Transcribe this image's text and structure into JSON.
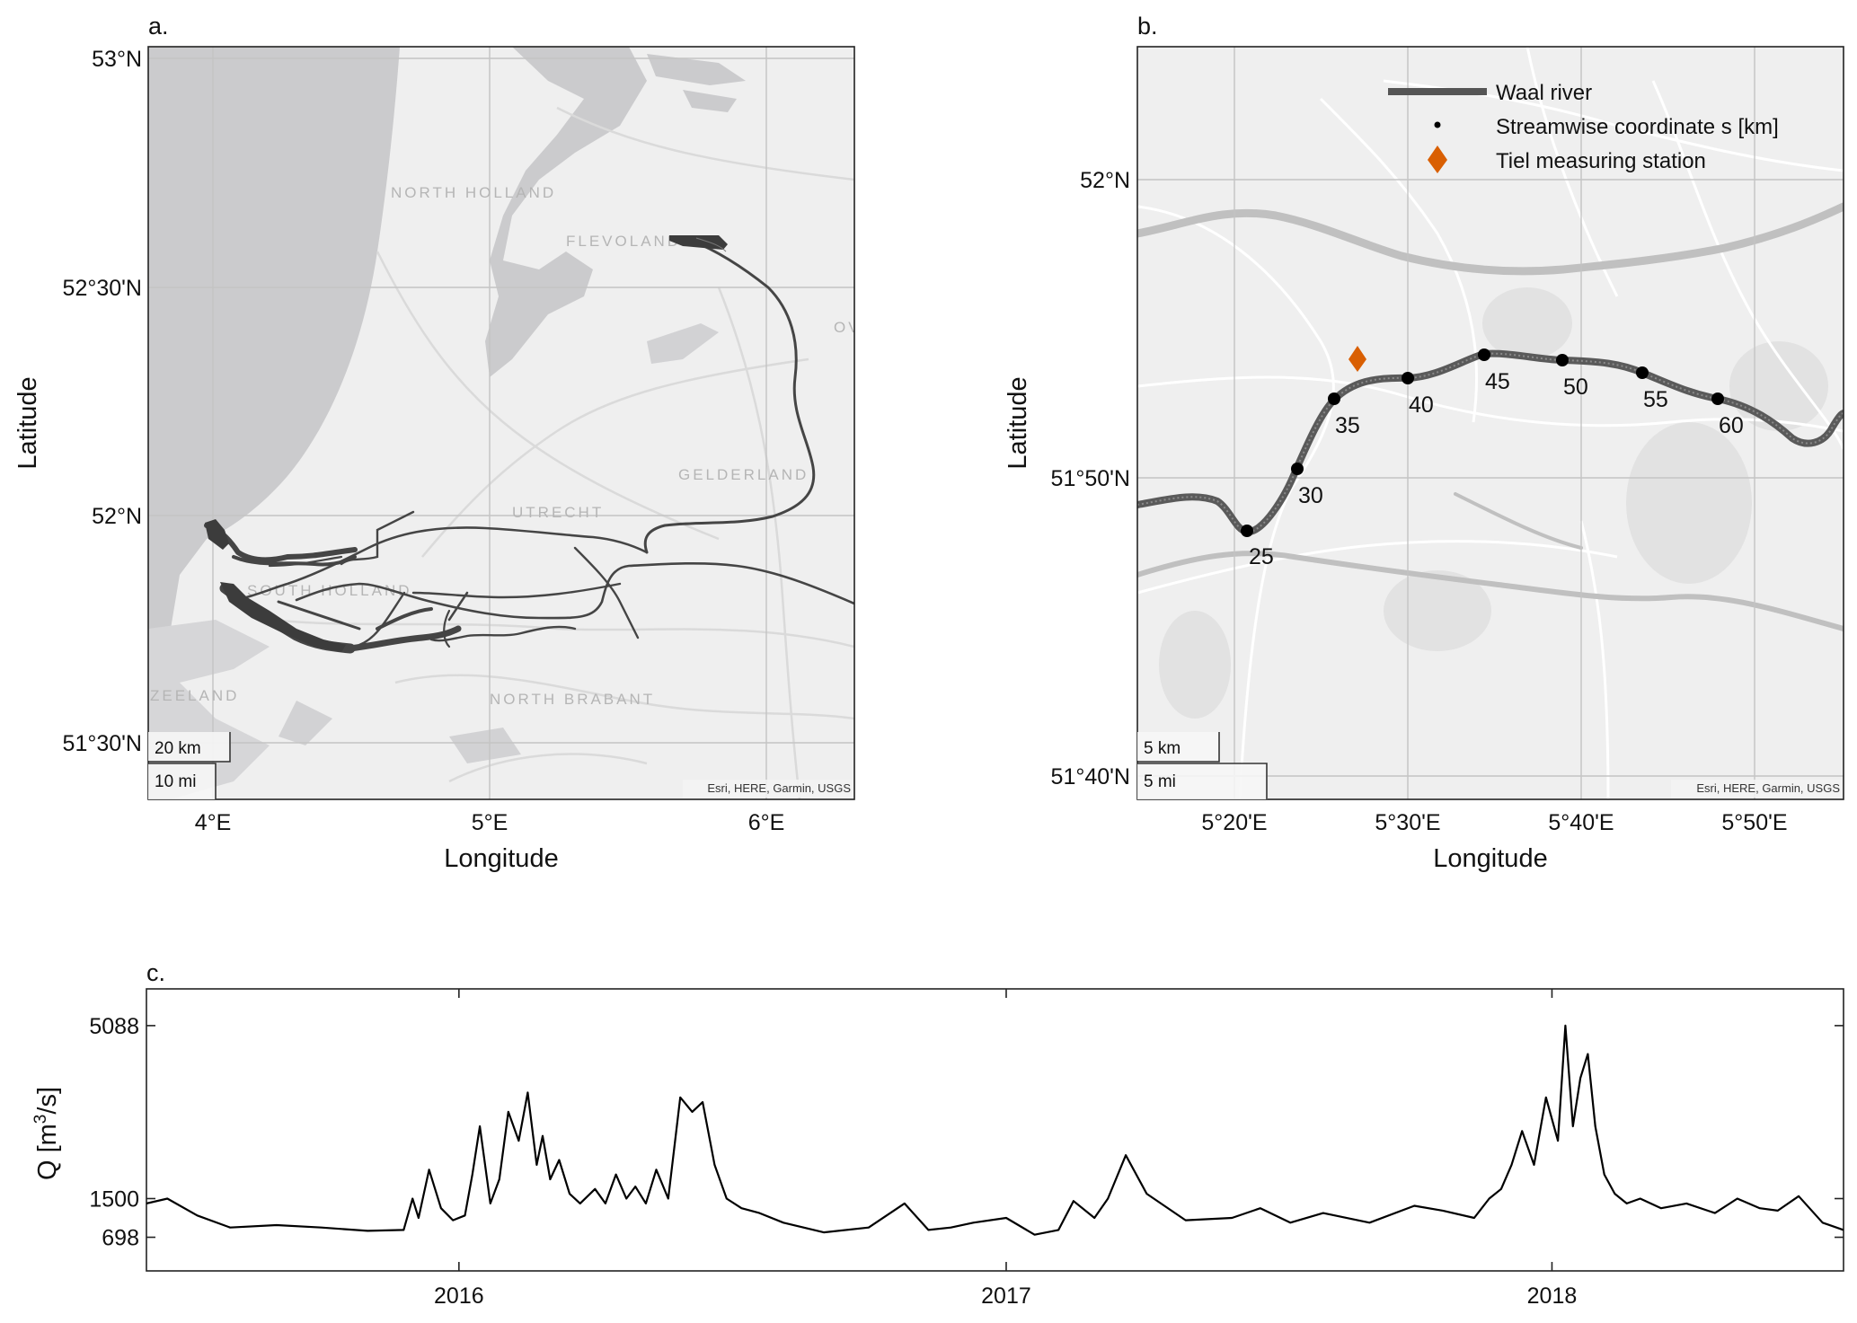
{
  "panel_a": {
    "label": "a.",
    "xlabel": "Longitude",
    "ylabel": "Latitude",
    "x_ticks": [
      "4°E",
      "5°E",
      "6°E"
    ],
    "y_ticks": [
      "53°N",
      "52°30'N",
      "52°N",
      "51°30'N"
    ],
    "place_labels": [
      "NORTH HOLLAND",
      "FLEVOLAND",
      "GELDERLAND",
      "UTRECHT",
      "SOUTH HOLLAND",
      "ZEELAND",
      "NORTH BRABANT",
      "OV"
    ],
    "scale_km": "20 km",
    "scale_mi": "10 mi",
    "attribution": "Esri, HERE, Garmin, USGS"
  },
  "panel_b": {
    "label": "b.",
    "xlabel": "Longitude",
    "ylabel": "Latitude",
    "x_ticks": [
      "5°20'E",
      "5°30'E",
      "5°40'E",
      "5°50'E"
    ],
    "y_ticks": [
      "52°N",
      "51°50'N",
      "51°40'N"
    ],
    "legend": [
      "Waal river",
      "Streamwise coordinate s [km]",
      "Tiel measuring station"
    ],
    "km_markers": [
      "25",
      "30",
      "35",
      "40",
      "45",
      "50",
      "55",
      "60"
    ],
    "scale_km": "5 km",
    "scale_mi": "5 mi",
    "attribution": "Esri, HERE, Garmin, USGS",
    "colors": {
      "river": "#555555",
      "station": "#d95f02",
      "marker": "#000000"
    }
  },
  "chart_data": {
    "type": "line",
    "title": "c.",
    "xlabel": "",
    "ylabel": "Q [m³/s]",
    "ylabel_parts": {
      "main": "Q [m",
      "sup": "3",
      "tail": "/s]"
    },
    "x_ticks": [
      "2016",
      "2017",
      "2018"
    ],
    "y_ticks": [
      698,
      1500,
      5088
    ],
    "ylim": [
      0,
      5850
    ],
    "xlim": [
      "2015-06-06",
      "2018-07-15"
    ],
    "series": [
      {
        "x": [
          "2015-06-06",
          "2015-06-20",
          "2015-07-10",
          "2015-08-01",
          "2015-09-01",
          "2015-10-01",
          "2015-11-01",
          "2015-11-25",
          "2015-12-01",
          "2015-12-05",
          "2015-12-12",
          "2015-12-20",
          "2015-12-28",
          "2016-01-05",
          "2016-01-10",
          "2016-01-15",
          "2016-01-22",
          "2016-01-28",
          "2016-02-03",
          "2016-02-10",
          "2016-02-16",
          "2016-02-22",
          "2016-02-26",
          "2016-03-02",
          "2016-03-08",
          "2016-03-15",
          "2016-03-22",
          "2016-04-01",
          "2016-04-08",
          "2016-04-15",
          "2016-04-22",
          "2016-04-28",
          "2016-05-05",
          "2016-05-12",
          "2016-05-20",
          "2016-05-28",
          "2016-06-05",
          "2016-06-12",
          "2016-06-20",
          "2016-06-28",
          "2016-07-08",
          "2016-07-20",
          "2016-08-05",
          "2016-09-01",
          "2016-10-01",
          "2016-10-25",
          "2016-11-10",
          "2016-11-25",
          "2016-12-10",
          "2017-01-01",
          "2017-01-20",
          "2017-02-05",
          "2017-02-15",
          "2017-03-01",
          "2017-03-10",
          "2017-03-22",
          "2017-04-05",
          "2017-05-01",
          "2017-06-01",
          "2017-06-20",
          "2017-07-10",
          "2017-08-01",
          "2017-09-01",
          "2017-10-01",
          "2017-10-20",
          "2017-11-10",
          "2017-11-20",
          "2017-11-28",
          "2017-12-05",
          "2017-12-12",
          "2017-12-20",
          "2017-12-28",
          "2018-01-05",
          "2018-01-10",
          "2018-01-15",
          "2018-01-20",
          "2018-01-25",
          "2018-01-30",
          "2018-02-05",
          "2018-02-12",
          "2018-02-20",
          "2018-03-01",
          "2018-03-15",
          "2018-04-01",
          "2018-04-20",
          "2018-05-05",
          "2018-05-20",
          "2018-06-01",
          "2018-06-15",
          "2018-07-01",
          "2018-07-15"
        ],
        "y": [
          1400,
          1500,
          1150,
          900,
          950,
          900,
          830,
          850,
          1500,
          1100,
          2100,
          1300,
          1050,
          1150,
          2000,
          3000,
          1400,
          1900,
          3300,
          2700,
          3700,
          2200,
          2800,
          1900,
          2300,
          1600,
          1400,
          1700,
          1400,
          2000,
          1500,
          1750,
          1400,
          2100,
          1500,
          3600,
          3300,
          3500,
          2200,
          1500,
          1300,
          1200,
          1000,
          800,
          900,
          1400,
          850,
          900,
          1000,
          1100,
          750,
          850,
          1450,
          1100,
          1500,
          2400,
          1600,
          1050,
          1100,
          1300,
          1000,
          1200,
          1000,
          1350,
          1250,
          1100,
          1500,
          1700,
          2200,
          2900,
          2200,
          3600,
          2700,
          5088,
          3000,
          4000,
          4500,
          3000,
          2000,
          1600,
          1400,
          1500,
          1300,
          1400,
          1200,
          1500,
          1300,
          1250,
          1550,
          1000,
          850
        ]
      }
    ]
  }
}
